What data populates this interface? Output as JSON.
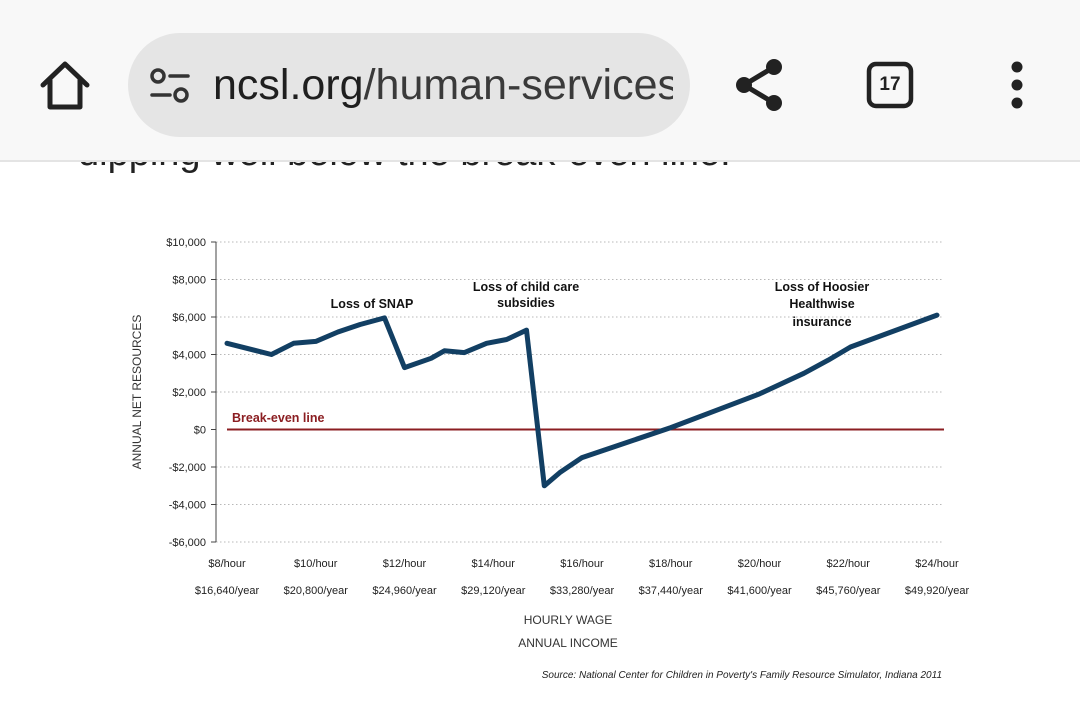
{
  "browser": {
    "url_domain": "ncsl.org",
    "url_path": "/human-services",
    "tab_count": "17",
    "icons": [
      "home-icon",
      "tune-icon",
      "share-icon",
      "tabs-icon",
      "more-vert-icon"
    ]
  },
  "article": {
    "partial_text": "dipping well below the break-even line."
  },
  "colors": {
    "series": "#123f63",
    "break_even": "#8b1e22",
    "grid": "#b8b8b8"
  },
  "chart_data": {
    "type": "line",
    "xlabel": "HOURLY WAGE",
    "xlabel2": "ANNUAL INCOME",
    "ylabel": "ANNUAL NET RESOURCES",
    "xlim": [
      8,
      24
    ],
    "ylim": [
      -6000,
      10000
    ],
    "y_ticks": [
      10000,
      8000,
      6000,
      4000,
      2000,
      0,
      -2000,
      -4000,
      -6000
    ],
    "y_tick_labels": [
      "$10,000",
      "$8,000",
      "$6,000",
      "$4,000",
      "$2,000",
      "$0",
      "-$2,000",
      "-$4,000",
      "-$6,000"
    ],
    "x_ticks": [
      8,
      10,
      12,
      14,
      16,
      18,
      20,
      22,
      24
    ],
    "x_tick_labels": [
      "$8/hour",
      "$10/hour",
      "$12/hour",
      "$14/hour",
      "$16/hour",
      "$18/hour",
      "$20/hour",
      "$22/hour",
      "$24/hour"
    ],
    "x_tick_labels2": [
      "$16,640/year",
      "$20,800/year",
      "$24,960/year",
      "$29,120/year",
      "$33,280/year",
      "$37,440/year",
      "$41,600/year",
      "$45,760/year",
      "$49,920/year"
    ],
    "grid": "horizontal dotted",
    "series": [
      {
        "x": [
          8,
          9,
          9.5,
          10,
          10.5,
          11,
          11.55,
          12,
          12.6,
          12.9,
          13.35,
          13.85,
          14.3,
          14.75,
          15.15,
          15.5,
          16,
          17,
          18,
          19,
          20,
          21,
          21.55,
          22.05,
          24
        ],
        "y": [
          4600,
          4000,
          4600,
          4700,
          5200,
          5600,
          5950,
          3300,
          3800,
          4200,
          4100,
          4600,
          4800,
          5300,
          -3000,
          -2300,
          -1500,
          -700,
          100,
          1000,
          1900,
          3000,
          3700,
          4400,
          6100
        ]
      }
    ],
    "reference_line": {
      "y": 0,
      "label": "Break-even line"
    },
    "annotations": [
      {
        "lines": [
          "Loss of SNAP"
        ]
      },
      {
        "lines": [
          "Loss of child care",
          "subsidies"
        ]
      },
      {
        "lines": [
          "Loss of Hoosier",
          "Healthwise",
          "insurance"
        ]
      }
    ],
    "source": "Source:  National Center for Children in Poverty's Family Resource Simulator, Indiana 2011"
  }
}
